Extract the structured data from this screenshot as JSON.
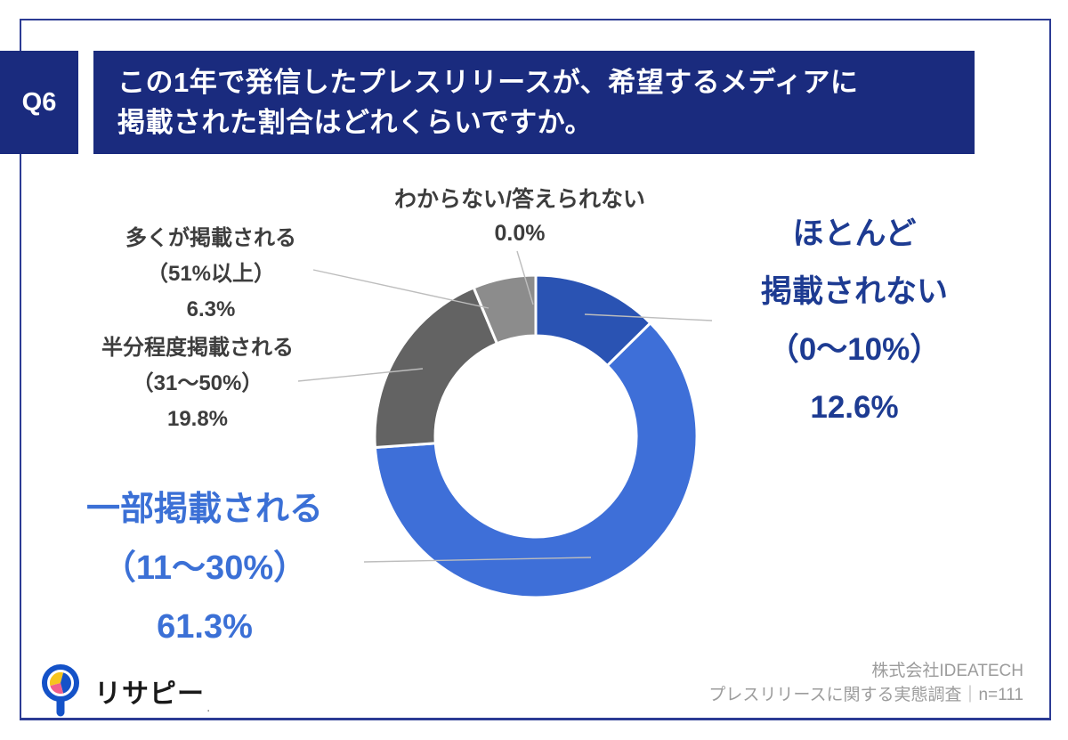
{
  "header": {
    "question_tag": "Q6",
    "title_line1": "この1年で発信したプレスリリースが、希望するメディアに",
    "title_line2": "掲載された割合はどれくらいですか。"
  },
  "chart_data": {
    "type": "pie",
    "subtype": "donut",
    "title": "この1年で発信したプレスリリースが、希望するメディアに掲載された割合はどれくらいですか。",
    "n": 111,
    "unit": "%",
    "direction": "clockwise",
    "start_angle_deg": 0,
    "inner_radius_ratio": 0.62,
    "segments": [
      {
        "label": "ほとんど掲載されない",
        "range": "（0〜10%）",
        "value": 12.6,
        "color": "#2a53b3"
      },
      {
        "label": "一部掲載される",
        "range": "（11〜30%）",
        "value": 61.3,
        "color": "#3e6fd8"
      },
      {
        "label": "半分程度掲載される",
        "range": "（31〜50%）",
        "value": 19.8,
        "color": "#636363"
      },
      {
        "label": "多くが掲載される",
        "range": "（51%以上）",
        "value": 6.3,
        "color": "#8c8c8c"
      },
      {
        "label": "わからない/答えられない",
        "range": "",
        "value": 0.0,
        "color": null
      }
    ]
  },
  "callouts": {
    "unknown": {
      "label": "わからない/答えられない",
      "pct": "0.0%"
    },
    "hotondo": {
      "line1": "ほとんど",
      "line2": "掲載されない",
      "range": "（0〜10%）",
      "pct": "12.6%"
    },
    "ooku": {
      "label": "多くが掲載される",
      "range": "（51%以上）",
      "pct": "6.3%"
    },
    "hanbun": {
      "label": "半分程度掲載される",
      "range": "（31〜50%）",
      "pct": "19.8%"
    },
    "ichibu": {
      "label": "一部掲載される",
      "range": "（11〜30%）",
      "pct": "61.3%"
    }
  },
  "logo": {
    "text": "リサピー",
    "mark": "."
  },
  "credit": {
    "line1": "株式会社IDEATECH",
    "line2": "プレスリリースに関する実態調査｜n=111"
  },
  "colors": {
    "navy": "#1a2b7e",
    "frame_border": "#2c3b94",
    "title_text": "#ffffff",
    "label_dark": "#3d3d3d",
    "label_navy": "#1d3b92",
    "label_blue": "#3b70d6",
    "credit_gray": "#9c9c9c",
    "leader": "#bdbdbd",
    "logo_black": "#1a1a1a",
    "logo_ring": "#1452c8",
    "logo_yellow": "#f6c51d",
    "logo_pink": "#f0608c",
    "gap_white": "#ffffff"
  }
}
